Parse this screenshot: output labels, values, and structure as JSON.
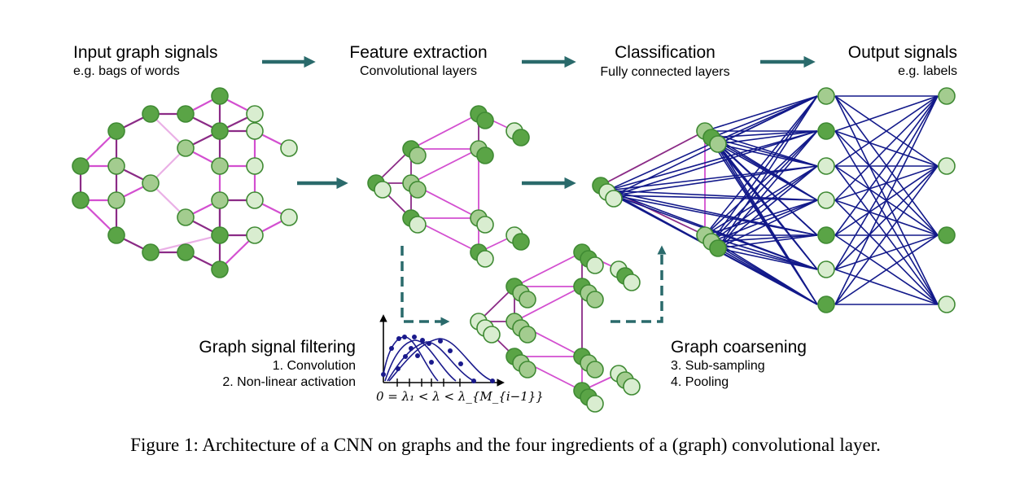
{
  "colors": {
    "node_dark": "#5aa446",
    "node_mid": "#a3cc8f",
    "node_light": "#d9edd0",
    "node_stroke": "#3f8a33",
    "edge_dark": "#8b2b86",
    "edge_mid": "#d34fd0",
    "edge_light": "#eab0e6",
    "fc_edge": "#12198a",
    "arrow": "#2a6a6b",
    "filter_curve": "#1a1a8c"
  },
  "stages": {
    "input": {
      "title": "Input graph signals",
      "subtitle": "e.g. bags of words"
    },
    "feature": {
      "title": "Feature extraction",
      "subtitle": "Convolutional layers"
    },
    "classification": {
      "title": "Classification",
      "subtitle": "Fully connected layers"
    },
    "output": {
      "title": "Output signals",
      "subtitle": "e.g. labels"
    }
  },
  "filtering": {
    "title": "Graph signal filtering",
    "step1": "1. Convolution",
    "step2": "2. Non-linear activation"
  },
  "coarsening": {
    "title": "Graph coarsening",
    "step3": "3. Sub-sampling",
    "step4": "4. Pooling"
  },
  "axis_label": "0 = λ₁ < λ < λ_{M_{i−1}}",
  "caption": "Figure 1: Architecture of a CNN on graphs and the four ingredients of a (graph) convolutional layer."
}
